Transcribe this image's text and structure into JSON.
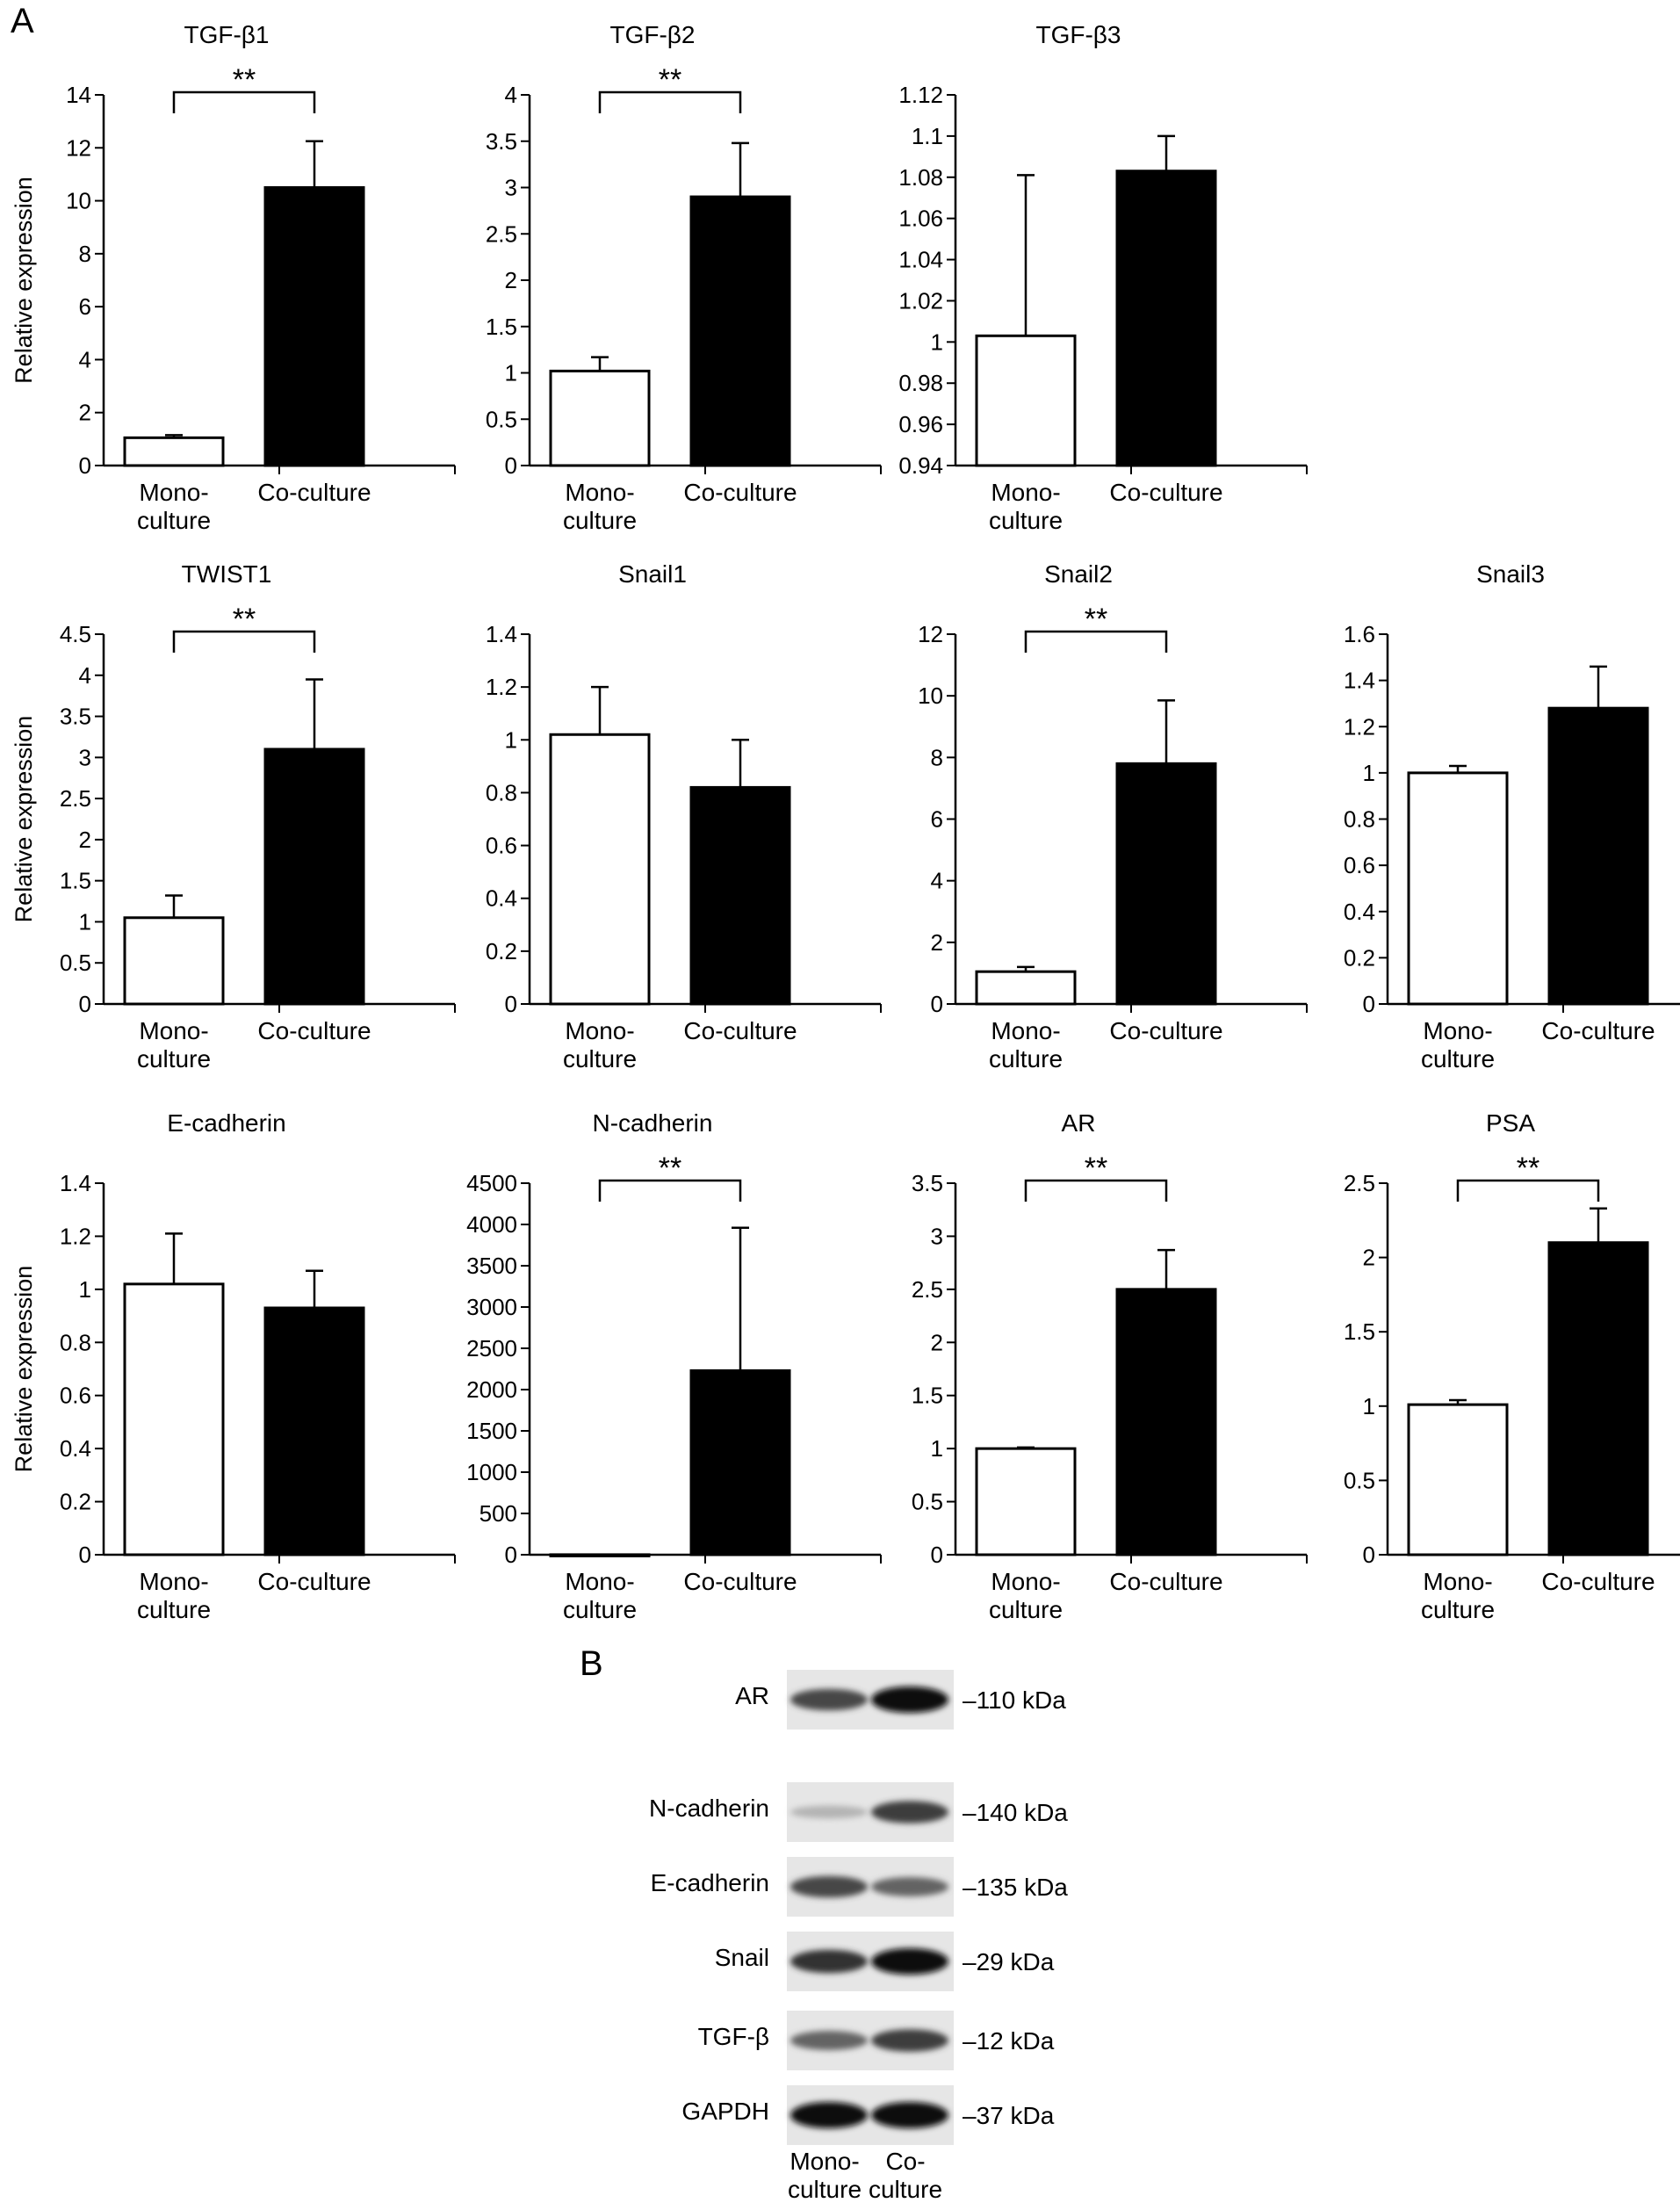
{
  "panel_a_label": "A",
  "panel_b_label": "B",
  "chart_data": [
    {
      "type": "bar",
      "title": "TGF-β1",
      "ylabel": "Relative expression",
      "categories": [
        "Mono-\nculture",
        "Co-culture"
      ],
      "values": [
        1.05,
        10.5
      ],
      "errors": [
        0.1,
        1.75
      ],
      "ylim": [
        0,
        14
      ],
      "ticks": [
        "0",
        "2",
        "4",
        "6",
        "8",
        "10",
        "12",
        "14"
      ],
      "bar_colors": [
        "#ffffff",
        "#000000"
      ],
      "significance": "**"
    },
    {
      "type": "bar",
      "title": "TGF-β2",
      "ylabel": "",
      "categories": [
        "Mono-\nculture",
        "Co-culture"
      ],
      "values": [
        1.02,
        2.9
      ],
      "errors": [
        0.15,
        0.58
      ],
      "ylim": [
        0,
        4
      ],
      "ticks": [
        "0",
        "0.5",
        "1",
        "1.5",
        "2",
        "2.5",
        "3",
        "3.5",
        "4"
      ],
      "bar_colors": [
        "#ffffff",
        "#000000"
      ],
      "significance": "**"
    },
    {
      "type": "bar",
      "title": "TGF-β3",
      "ylabel": "",
      "categories": [
        "Mono-\nculture",
        "Co-culture"
      ],
      "values": [
        1.003,
        1.083
      ],
      "errors": [
        0.078,
        0.017
      ],
      "ylim": [
        0.94,
        1.12
      ],
      "ticks": [
        "0.94",
        "0.96",
        "0.98",
        "1",
        "1.02",
        "1.04",
        "1.06",
        "1.08",
        "1.1",
        "1.12"
      ],
      "bar_colors": [
        "#ffffff",
        "#000000"
      ],
      "significance": ""
    },
    {
      "type": "bar",
      "title": "TWIST1",
      "ylabel": "Relative expression",
      "categories": [
        "Mono-\nculture",
        "Co-culture"
      ],
      "values": [
        1.05,
        3.1
      ],
      "errors": [
        0.27,
        0.85
      ],
      "ylim": [
        0,
        4.5
      ],
      "ticks": [
        "0",
        "0.5",
        "1",
        "1.5",
        "2",
        "2.5",
        "3",
        "3.5",
        "4",
        "4.5"
      ],
      "bar_colors": [
        "#ffffff",
        "#000000"
      ],
      "significance": "**"
    },
    {
      "type": "bar",
      "title": "Snail1",
      "ylabel": "",
      "categories": [
        "Mono-\nculture",
        "Co-culture"
      ],
      "values": [
        1.02,
        0.82
      ],
      "errors": [
        0.18,
        0.18
      ],
      "ylim": [
        0,
        1.4
      ],
      "ticks": [
        "0",
        "0.2",
        "0.4",
        "0.6",
        "0.8",
        "1",
        "1.2",
        "1.4"
      ],
      "bar_colors": [
        "#ffffff",
        "#000000"
      ],
      "significance": ""
    },
    {
      "type": "bar",
      "title": "Snail2",
      "ylabel": "",
      "categories": [
        "Mono-\nculture",
        "Co-culture"
      ],
      "values": [
        1.05,
        7.8
      ],
      "errors": [
        0.15,
        2.05
      ],
      "ylim": [
        0,
        12
      ],
      "ticks": [
        "0",
        "2",
        "4",
        "6",
        "8",
        "10",
        "12"
      ],
      "bar_colors": [
        "#ffffff",
        "#000000"
      ],
      "significance": "**"
    },
    {
      "type": "bar",
      "title": "Snail3",
      "ylabel": "",
      "categories": [
        "Mono-\nculture",
        "Co-culture"
      ],
      "values": [
        1.0,
        1.28
      ],
      "errors": [
        0.03,
        0.18
      ],
      "ylim": [
        0,
        1.6
      ],
      "ticks": [
        "0",
        "0.2",
        "0.4",
        "0.6",
        "0.8",
        "1",
        "1.2",
        "1.4",
        "1.6"
      ],
      "bar_colors": [
        "#ffffff",
        "#000000"
      ],
      "significance": ""
    },
    {
      "type": "bar",
      "title": "E-cadherin",
      "ylabel": "Relative expression",
      "categories": [
        "Mono-\nculture",
        "Co-culture"
      ],
      "values": [
        1.02,
        0.93
      ],
      "errors": [
        0.19,
        0.14
      ],
      "ylim": [
        0,
        1.4
      ],
      "ticks": [
        "0",
        "0.2",
        "0.4",
        "0.6",
        "0.8",
        "1",
        "1.2",
        "1.4"
      ],
      "bar_colors": [
        "#ffffff",
        "#000000"
      ],
      "significance": ""
    },
    {
      "type": "bar",
      "title": "N-cadherin",
      "ylabel": "",
      "categories": [
        "Mono-\nculture",
        "Co-culture"
      ],
      "values": [
        1,
        2230
      ],
      "errors": [
        0,
        1730
      ],
      "ylim": [
        0,
        4500
      ],
      "ticks": [
        "0",
        "500",
        "1000",
        "1500",
        "2000",
        "2500",
        "3000",
        "3500",
        "4000",
        "4500"
      ],
      "bar_colors": [
        "#ffffff",
        "#000000"
      ],
      "significance": "**"
    },
    {
      "type": "bar",
      "title": "AR",
      "ylabel": "",
      "categories": [
        "Mono-\nculture",
        "Co-culture"
      ],
      "values": [
        1.0,
        2.5
      ],
      "errors": [
        0.01,
        0.37
      ],
      "ylim": [
        0,
        3.5
      ],
      "ticks": [
        "0",
        "0.5",
        "1",
        "1.5",
        "2",
        "2.5",
        "3",
        "3.5"
      ],
      "bar_colors": [
        "#ffffff",
        "#000000"
      ],
      "significance": "**"
    },
    {
      "type": "bar",
      "title": "PSA",
      "ylabel": "",
      "categories": [
        "Mono-\nculture",
        "Co-culture"
      ],
      "values": [
        1.01,
        2.1
      ],
      "errors": [
        0.03,
        0.23
      ],
      "ylim": [
        0,
        2.5
      ],
      "ticks": [
        "0",
        "0.5",
        "1",
        "1.5",
        "2",
        "2.5"
      ],
      "bar_colors": [
        "#ffffff",
        "#000000"
      ],
      "significance": "**"
    }
  ],
  "western_blot": {
    "lanes": [
      "Mono-\nculture",
      "Co-\nculture"
    ],
    "rows": [
      {
        "protein": "AR",
        "size": "–110 kDa",
        "intensity": [
          0.7,
          1.0
        ]
      },
      {
        "protein": "N-cadherin",
        "size": "–140 kDa",
        "intensity": [
          0.15,
          0.75
        ]
      },
      {
        "protein": "E-cadherin",
        "size": "–135 kDa",
        "intensity": [
          0.7,
          0.55
        ]
      },
      {
        "protein": "Snail",
        "size": "–29 kDa",
        "intensity": [
          0.8,
          1.0
        ]
      },
      {
        "protein": "TGF-β",
        "size": "–12 kDa",
        "intensity": [
          0.55,
          0.75
        ]
      },
      {
        "protein": "GAPDH",
        "size": "–37 kDa",
        "intensity": [
          1.0,
          1.0
        ]
      }
    ]
  }
}
